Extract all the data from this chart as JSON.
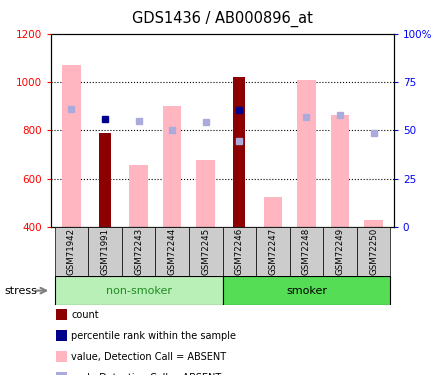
{
  "title": "GDS1436 / AB000896_at",
  "samples": [
    "GSM71942",
    "GSM71991",
    "GSM72243",
    "GSM72244",
    "GSM72245",
    "GSM72246",
    "GSM72247",
    "GSM72248",
    "GSM72249",
    "GSM72250"
  ],
  "count_values": [
    null,
    790,
    null,
    null,
    null,
    1020,
    null,
    null,
    null,
    null
  ],
  "percentile_values": [
    null,
    848,
    null,
    null,
    null,
    885,
    null,
    null,
    null,
    null
  ],
  "absent_value_bars": [
    1070,
    null,
    655,
    900,
    675,
    null,
    525,
    1010,
    865,
    430
  ],
  "absent_rank_markers": [
    888,
    null,
    838,
    803,
    835,
    757,
    null,
    855,
    863,
    790
  ],
  "ylim_left": [
    400,
    1200
  ],
  "ylim_right": [
    0,
    100
  ],
  "right_ticks": [
    0,
    25,
    50,
    75,
    100
  ],
  "right_tick_labels": [
    "0",
    "25",
    "50",
    "75",
    "100%"
  ],
  "left_ticks": [
    400,
    600,
    800,
    1000,
    1200
  ],
  "left_tick_labels": [
    "400",
    "600",
    "800",
    "1000",
    "1200"
  ],
  "count_color": "#8B0000",
  "percentile_color": "#00008B",
  "absent_value_color": "#FFB6C1",
  "absent_rank_color": "#AAAADD",
  "plot_bg_color": "#ffffff",
  "tick_label_area_color": "#CCCCCC",
  "nonsmoker_color": "#B8F0B8",
  "smoker_color": "#55DD55",
  "group_text_color": "#228B22",
  "grid_vals": [
    600,
    800,
    1000
  ],
  "bar_width": 0.55,
  "count_bar_width": 0.35
}
